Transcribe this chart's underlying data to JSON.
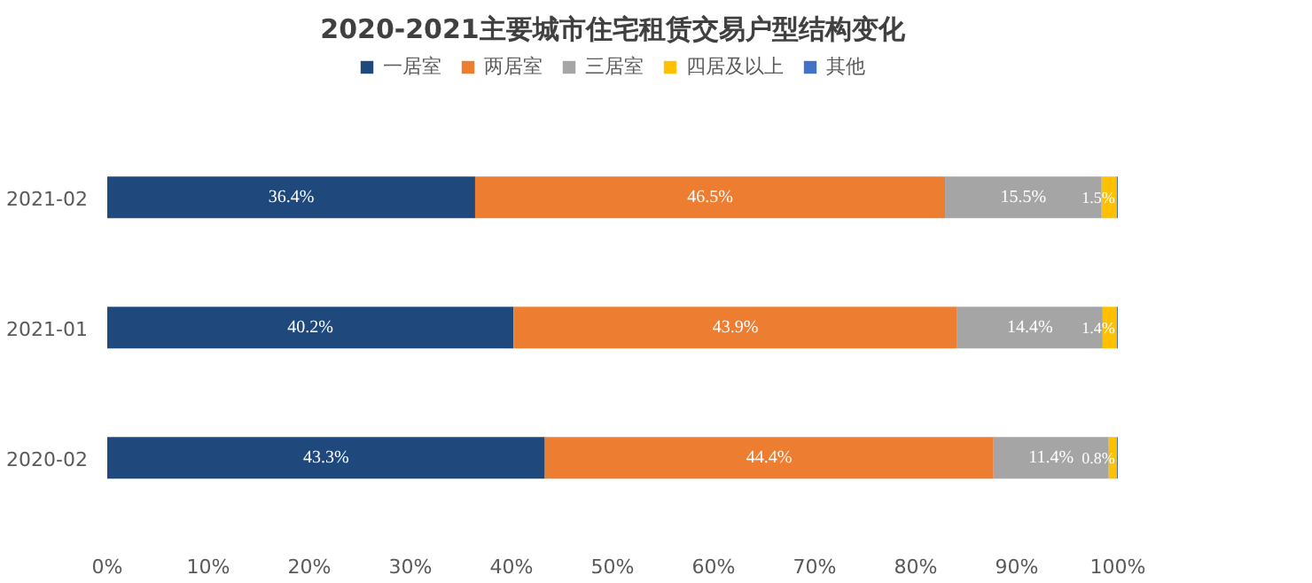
{
  "chart_data": {
    "type": "bar",
    "orientation": "horizontal",
    "stacked": true,
    "title": "2020-2021主要城市住宅租赁交易户型结构变化",
    "categories": [
      "2021-02",
      "2021-01",
      "2020-02"
    ],
    "series": [
      {
        "name": "一居室",
        "color": "#1f497d",
        "values": [
          36.4,
          40.2,
          43.3
        ],
        "value_labels": [
          "36.4%",
          "40.2%",
          "43.3%"
        ]
      },
      {
        "name": "两居室",
        "color": "#ed7d31",
        "values": [
          46.5,
          43.9,
          44.4
        ],
        "value_labels": [
          "46.5%",
          "43.9%",
          "44.4%"
        ]
      },
      {
        "name": "三居室",
        "color": "#a5a5a5",
        "values": [
          15.5,
          14.4,
          11.4
        ],
        "value_labels": [
          "15.5%",
          "14.4%",
          "11.4%"
        ]
      },
      {
        "name": "四居及以上",
        "color": "#ffc000",
        "values": [
          1.5,
          1.4,
          0.8
        ],
        "value_labels": [
          "1.5%",
          "1.4%",
          "0.8%"
        ]
      },
      {
        "name": "其他",
        "color": "#4472c4",
        "values": [
          0.1,
          0.1,
          0.1
        ]
      }
    ],
    "xlim": [
      0,
      100
    ],
    "xticks": [
      {
        "value": 0,
        "label": "0%"
      },
      {
        "value": 10,
        "label": "10%"
      },
      {
        "value": 20,
        "label": "20%"
      },
      {
        "value": 30,
        "label": "30%"
      },
      {
        "value": 40,
        "label": "40%"
      },
      {
        "value": 50,
        "label": "50%"
      },
      {
        "value": 60,
        "label": "60%"
      },
      {
        "value": 70,
        "label": "70%"
      },
      {
        "value": 80,
        "label": "80%"
      },
      {
        "value": 90,
        "label": "90%"
      },
      {
        "value": 100,
        "label": "100%"
      }
    ],
    "grid": false,
    "legend": "top"
  }
}
